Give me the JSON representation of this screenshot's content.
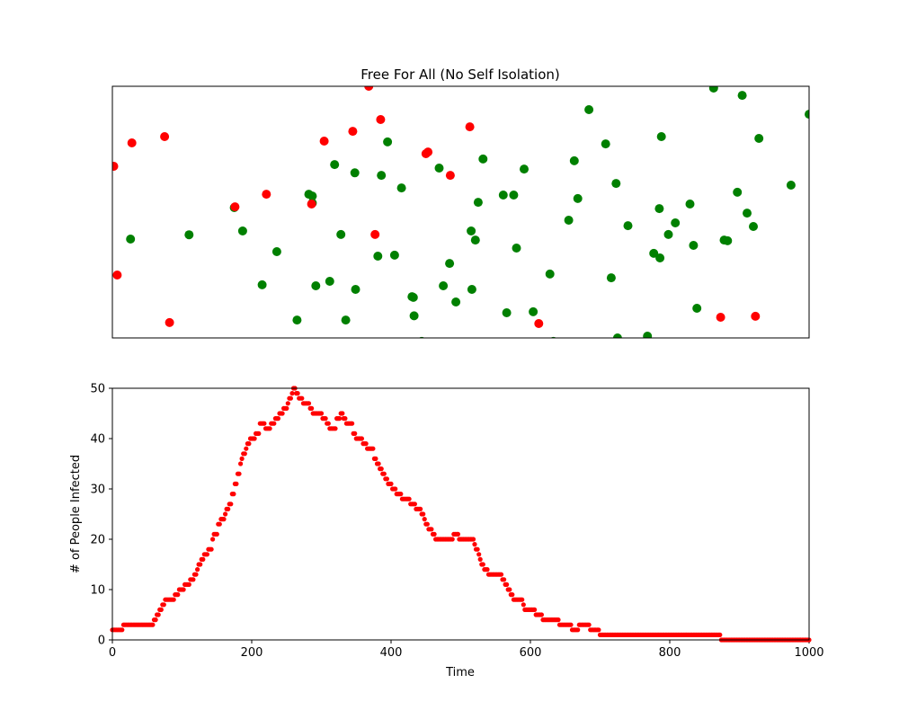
{
  "colors": {
    "healthy": "#008000",
    "infected": "#ff0000",
    "axis": "#000000"
  },
  "chart_data": [
    {
      "type": "scatter",
      "title": "Free For All (No Self Isolation)",
      "xticks": false,
      "yticks": false,
      "xlim": [
        0,
        1000
      ],
      "ylim": [
        0,
        1000
      ],
      "series": [
        {
          "color": "#008000",
          "points": [
            [
              26,
              393
            ],
            [
              110,
              410
            ],
            [
              187,
              425
            ],
            [
              175,
              518
            ],
            [
              236,
              343
            ],
            [
              215,
              211
            ],
            [
              265,
              71
            ],
            [
              282,
              571
            ],
            [
              287,
              564
            ],
            [
              287,
              536
            ],
            [
              292,
              207
            ],
            [
              328,
              411
            ],
            [
              319,
              689
            ],
            [
              312,
              225
            ],
            [
              335,
              71
            ],
            [
              348,
              656
            ],
            [
              349,
              193
            ],
            [
              381,
              325
            ],
            [
              395,
              779
            ],
            [
              386,
              646
            ],
            [
              415,
              596
            ],
            [
              405,
              329
            ],
            [
              432,
              161
            ],
            [
              430,
              164
            ],
            [
              433,
              88
            ],
            [
              444,
              -14
            ],
            [
              469,
              675
            ],
            [
              475,
              207
            ],
            [
              484,
              296
            ],
            [
              493,
              143
            ],
            [
              515,
              425
            ],
            [
              516,
              193
            ],
            [
              521,
              389
            ],
            [
              525,
              539
            ],
            [
              532,
              711
            ],
            [
              561,
              568
            ],
            [
              566,
              100
            ],
            [
              576,
              568
            ],
            [
              580,
              357
            ],
            [
              591,
              671
            ],
            [
              604,
              104
            ],
            [
              628,
              254
            ],
            [
              633,
              -14
            ],
            [
              655,
              468
            ],
            [
              663,
              704
            ],
            [
              668,
              554
            ],
            [
              684,
              907
            ],
            [
              708,
              771
            ],
            [
              716,
              239
            ],
            [
              723,
              614
            ],
            [
              725,
              0
            ],
            [
              740,
              446
            ],
            [
              768,
              7
            ],
            [
              777,
              336
            ],
            [
              786,
              318
            ],
            [
              788,
              800
            ],
            [
              785,
              514
            ],
            [
              798,
              411
            ],
            [
              808,
              457
            ],
            [
              829,
              532
            ],
            [
              834,
              368
            ],
            [
              839,
              118
            ],
            [
              863,
              993
            ],
            [
              878,
              389
            ],
            [
              883,
              386
            ],
            [
              897,
              579
            ],
            [
              904,
              964
            ],
            [
              911,
              496
            ],
            [
              920,
              443
            ],
            [
              928,
              793
            ],
            [
              974,
              607
            ],
            [
              1000,
              889
            ]
          ]
        },
        {
          "color": "#ff0000",
          "points": [
            [
              2,
              682
            ],
            [
              7,
              250
            ],
            [
              28,
              775
            ],
            [
              75,
              800
            ],
            [
              82,
              61
            ],
            [
              176,
              521
            ],
            [
              221,
              571
            ],
            [
              286,
              532
            ],
            [
              304,
              782
            ],
            [
              345,
              821
            ],
            [
              368,
              1000
            ],
            [
              377,
              411
            ],
            [
              385,
              868
            ],
            [
              450,
              732
            ],
            [
              453,
              739
            ],
            [
              485,
              646
            ],
            [
              513,
              839
            ],
            [
              612,
              57
            ],
            [
              873,
              82
            ],
            [
              923,
              86
            ]
          ]
        }
      ]
    },
    {
      "type": "scatter",
      "title": "",
      "xlabel": "Time",
      "ylabel": "# of People Infected",
      "xlim": [
        0,
        1000
      ],
      "ylim": [
        0,
        50
      ],
      "xtick_labels": [
        "0",
        "200",
        "400",
        "600",
        "800",
        "1000"
      ],
      "ytick_labels": [
        "0",
        "10",
        "20",
        "30",
        "40",
        "50"
      ],
      "series": [
        {
          "color": "#ff0000",
          "steps": [
            [
              0,
              2
            ],
            [
              15,
              3
            ],
            [
              60,
              4
            ],
            [
              64,
              5
            ],
            [
              68,
              6
            ],
            [
              72,
              7
            ],
            [
              75,
              8
            ],
            [
              90,
              9
            ],
            [
              95,
              10
            ],
            [
              103,
              11
            ],
            [
              112,
              12
            ],
            [
              118,
              13
            ],
            [
              121,
              14
            ],
            [
              124,
              15
            ],
            [
              127,
              16
            ],
            [
              131,
              17
            ],
            [
              138,
              18
            ],
            [
              143,
              20
            ],
            [
              146,
              21
            ],
            [
              151,
              23
            ],
            [
              155,
              24
            ],
            [
              161,
              25
            ],
            [
              164,
              26
            ],
            [
              167,
              27
            ],
            [
              172,
              29
            ],
            [
              175,
              31
            ],
            [
              180,
              33
            ],
            [
              184,
              35
            ],
            [
              186,
              36
            ],
            [
              188,
              37
            ],
            [
              191,
              38
            ],
            [
              194,
              39
            ],
            [
              197,
              40
            ],
            [
              205,
              41
            ],
            [
              212,
              43
            ],
            [
              219,
              42
            ],
            [
              227,
              43
            ],
            [
              233,
              44
            ],
            [
              240,
              45
            ],
            [
              246,
              46
            ],
            [
              251,
              47
            ],
            [
              254,
              48
            ],
            [
              257,
              49
            ],
            [
              260,
              50
            ],
            [
              264,
              49
            ],
            [
              268,
              48
            ],
            [
              273,
              47
            ],
            [
              283,
              46
            ],
            [
              287,
              45
            ],
            [
              301,
              44
            ],
            [
              308,
              43
            ],
            [
              312,
              42
            ],
            [
              321,
              44
            ],
            [
              327,
              45
            ],
            [
              331,
              44
            ],
            [
              335,
              43
            ],
            [
              345,
              41
            ],
            [
              350,
              40
            ],
            [
              360,
              39
            ],
            [
              365,
              38
            ],
            [
              375,
              36
            ],
            [
              379,
              35
            ],
            [
              383,
              34
            ],
            [
              387,
              33
            ],
            [
              392,
              32
            ],
            [
              396,
              31
            ],
            [
              402,
              30
            ],
            [
              408,
              29
            ],
            [
              415,
              28
            ],
            [
              428,
              27
            ],
            [
              435,
              26
            ],
            [
              443,
              25
            ],
            [
              447,
              24
            ],
            [
              450,
              23
            ],
            [
              453,
              22
            ],
            [
              460,
              21
            ],
            [
              463,
              20
            ],
            [
              490,
              21
            ],
            [
              497,
              20
            ],
            [
              520,
              19
            ],
            [
              522,
              18
            ],
            [
              525,
              17
            ],
            [
              527,
              16
            ],
            [
              530,
              15
            ],
            [
              533,
              14
            ],
            [
              540,
              13
            ],
            [
              559,
              12
            ],
            [
              563,
              11
            ],
            [
              567,
              10
            ],
            [
              571,
              9
            ],
            [
              576,
              8
            ],
            [
              590,
              7
            ],
            [
              592,
              6
            ],
            [
              608,
              5
            ],
            [
              617,
              4
            ],
            [
              641,
              3
            ],
            [
              660,
              2
            ],
            [
              670,
              3
            ],
            [
              685,
              2
            ],
            [
              700,
              1
            ],
            [
              874,
              0
            ]
          ]
        }
      ]
    }
  ]
}
